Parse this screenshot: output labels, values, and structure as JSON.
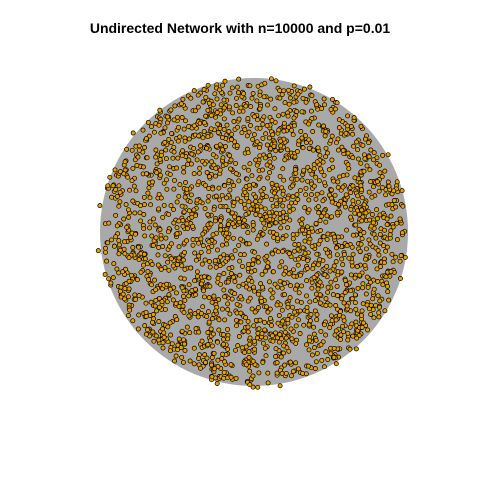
{
  "title": "Undirected Network with n=10000 and p=0.01",
  "network": {
    "directed": false,
    "node_fill": "#E69F00",
    "node_stroke": "#000000",
    "edge_color": "#A9A9A9"
  }
}
